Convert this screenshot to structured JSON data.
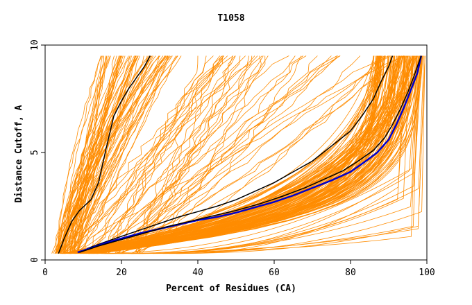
{
  "chart_data": {
    "type": "line",
    "title": "T1058",
    "xlabel": "Percent of Residues (CA)",
    "ylabel": "Distance Cutoff, A",
    "xlim": [
      0,
      100
    ],
    "ylim": [
      0,
      10
    ],
    "x_ticks": [
      {
        "value": 0,
        "label": "0"
      },
      {
        "value": 20,
        "label": "20"
      },
      {
        "value": 40,
        "label": "40"
      },
      {
        "value": 60,
        "label": "60"
      },
      {
        "value": 80,
        "label": "80"
      },
      {
        "value": 100,
        "label": "100"
      }
    ],
    "y_ticks": [
      {
        "value": 0,
        "label": "0"
      },
      {
        "value": 5,
        "label": "5"
      },
      {
        "value": 10,
        "label": "10"
      }
    ],
    "grid": false,
    "legend": "none",
    "colors": {
      "background_models": "#ff8c00",
      "highlight_black": "#000000",
      "highlight_blue": "#0000cc",
      "axes": "#000000"
    },
    "series": [
      {
        "color": "#000000",
        "points": [
          [
            3.5,
            0.3
          ],
          [
            5,
            1.0
          ],
          [
            7,
            1.8
          ],
          [
            9,
            2.3
          ],
          [
            12,
            2.8
          ],
          [
            14,
            3.6
          ],
          [
            16,
            5.2
          ],
          [
            18,
            6.7
          ],
          [
            20,
            7.4
          ],
          [
            22,
            8.0
          ],
          [
            24,
            8.5
          ],
          [
            26,
            9.0
          ],
          [
            27.5,
            9.5
          ]
        ]
      },
      {
        "color": "#000000",
        "points": [
          [
            9,
            0.35
          ],
          [
            12,
            0.6
          ],
          [
            16,
            0.85
          ],
          [
            20,
            1.1
          ],
          [
            25,
            1.4
          ],
          [
            30,
            1.7
          ],
          [
            35,
            2.0
          ],
          [
            40,
            2.25
          ],
          [
            45,
            2.5
          ],
          [
            50,
            2.8
          ],
          [
            55,
            3.2
          ],
          [
            60,
            3.6
          ],
          [
            65,
            4.1
          ],
          [
            70,
            4.6
          ],
          [
            75,
            5.3
          ],
          [
            80,
            6.0
          ],
          [
            83,
            6.7
          ],
          [
            86,
            7.5
          ],
          [
            88,
            8.3
          ],
          [
            90,
            9.0
          ],
          [
            91,
            9.5
          ]
        ]
      },
      {
        "color": "#0000cc",
        "points": [
          [
            8.5,
            0.35
          ],
          [
            12,
            0.55
          ],
          [
            16,
            0.8
          ],
          [
            20,
            1.0
          ],
          [
            25,
            1.25
          ],
          [
            30,
            1.45
          ],
          [
            35,
            1.65
          ],
          [
            40,
            1.85
          ],
          [
            45,
            2.0
          ],
          [
            50,
            2.2
          ],
          [
            55,
            2.45
          ],
          [
            60,
            2.7
          ],
          [
            65,
            3.0
          ],
          [
            70,
            3.35
          ],
          [
            75,
            3.7
          ],
          [
            80,
            4.1
          ],
          [
            84,
            4.6
          ],
          [
            87,
            5.0
          ],
          [
            90,
            5.6
          ],
          [
            92,
            6.3
          ],
          [
            94,
            7.1
          ],
          [
            96,
            8.0
          ],
          [
            97.5,
            8.7
          ],
          [
            98.5,
            9.5
          ]
        ]
      },
      {
        "color": "#000000",
        "points": [
          [
            9,
            0.35
          ],
          [
            14,
            0.65
          ],
          [
            20,
            0.95
          ],
          [
            26,
            1.25
          ],
          [
            32,
            1.55
          ],
          [
            38,
            1.8
          ],
          [
            44,
            2.05
          ],
          [
            50,
            2.3
          ],
          [
            56,
            2.6
          ],
          [
            62,
            2.95
          ],
          [
            68,
            3.35
          ],
          [
            73,
            3.75
          ],
          [
            78,
            4.15
          ],
          [
            82,
            4.6
          ],
          [
            86,
            5.1
          ],
          [
            89,
            5.7
          ],
          [
            91,
            6.3
          ],
          [
            93,
            7.0
          ],
          [
            95,
            7.8
          ],
          [
            96.5,
            8.5
          ],
          [
            97.5,
            9.0
          ],
          [
            98.5,
            9.5
          ]
        ]
      }
    ]
  }
}
